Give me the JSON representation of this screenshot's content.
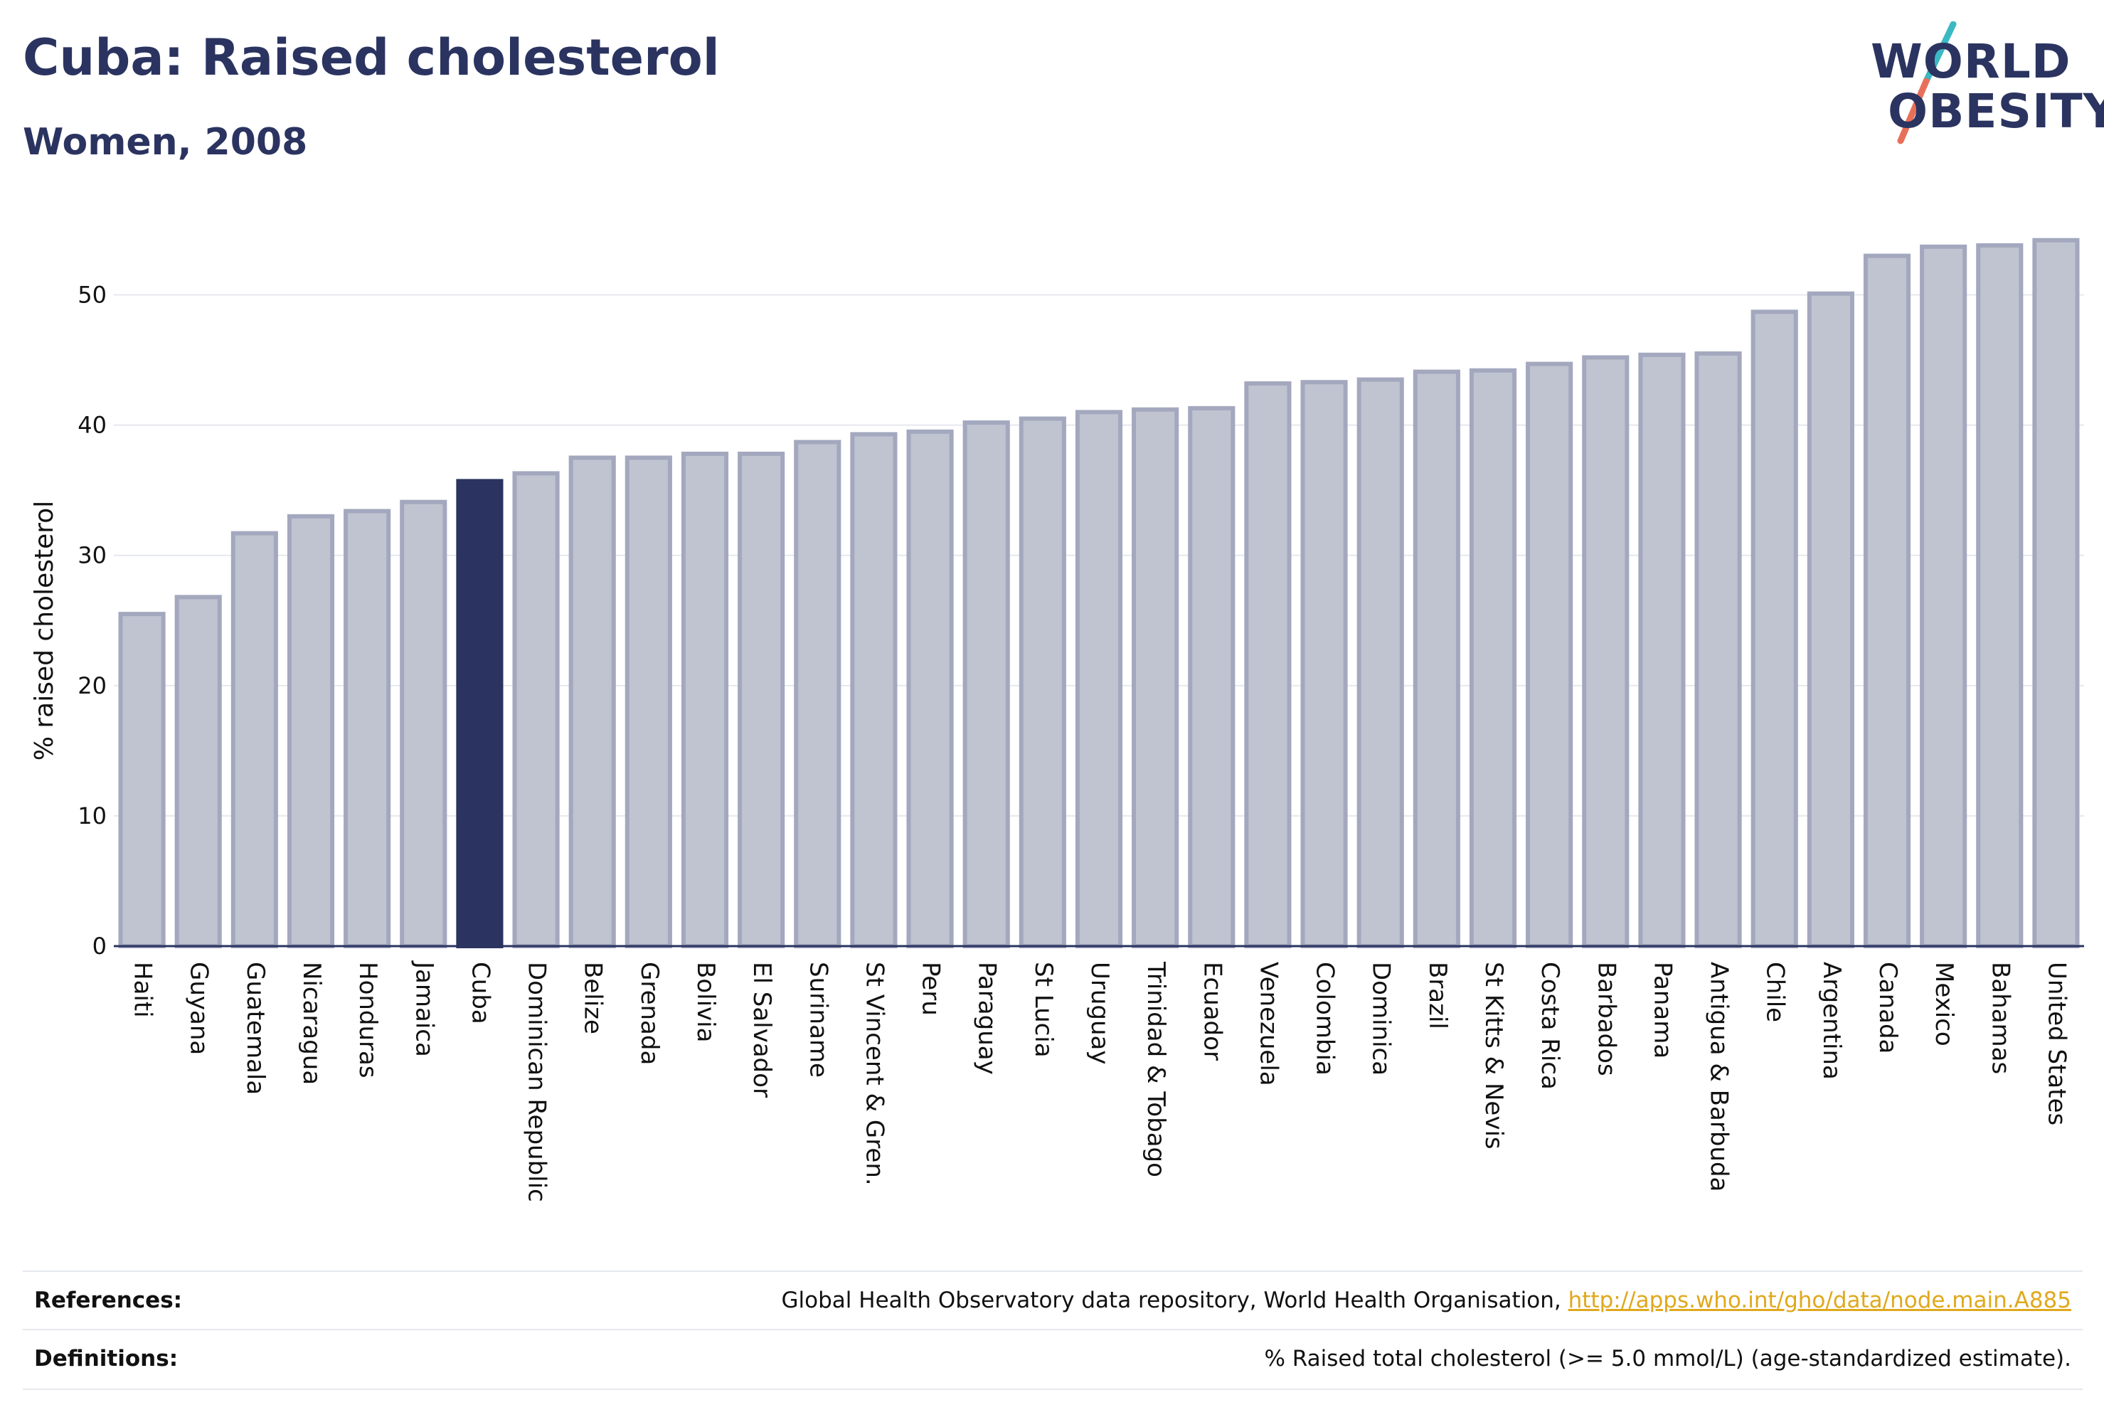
{
  "header": {
    "title": "Cuba: Raised cholesterol",
    "subtitle": "Women, 2008"
  },
  "logo": {
    "line1": "WORLD",
    "line2": "OBESITY",
    "slash_colors": [
      "#3bb9c3",
      "#e8705a"
    ]
  },
  "colors": {
    "highlight": "#2b3460",
    "bar_fill": "#c0c3d0",
    "bar_stroke": "#a3a8be"
  },
  "chart_data": {
    "type": "bar",
    "title": "Cuba: Raised cholesterol",
    "subtitle": "Women, 2008",
    "xlabel": "",
    "ylabel": "% raised cholesterol",
    "ylim": [
      0,
      55
    ],
    "yticks": [
      0,
      10,
      20,
      30,
      40,
      50
    ],
    "grid": true,
    "highlight": "Cuba",
    "categories": [
      "Haiti",
      "Guyana",
      "Guatemala",
      "Nicaragua",
      "Honduras",
      "Jamaica",
      "Cuba",
      "Dominican Republic",
      "Belize",
      "Grenada",
      "Bolivia",
      "El Salvador",
      "Suriname",
      "St Vincent & Gren.",
      "Peru",
      "Paraguay",
      "St Lucia",
      "Uruguay",
      "Trinidad & Tobago",
      "Ecuador",
      "Venezuela",
      "Colombia",
      "Dominica",
      "Brazil",
      "St Kitts & Nevis",
      "Costa Rica",
      "Barbados",
      "Panama",
      "Antigua & Barbuda",
      "Chile",
      "Argentina",
      "Canada",
      "Mexico",
      "Bahamas",
      "United States"
    ],
    "values": [
      25.5,
      26.8,
      31.7,
      33.0,
      33.4,
      34.1,
      35.7,
      36.3,
      37.5,
      37.5,
      37.8,
      37.8,
      38.7,
      39.3,
      39.5,
      40.2,
      40.5,
      41.0,
      41.2,
      41.3,
      43.2,
      43.3,
      43.5,
      44.1,
      44.2,
      44.7,
      45.2,
      45.4,
      45.5,
      48.7,
      50.1,
      53.0,
      53.7,
      53.8,
      54.2
    ]
  },
  "references": {
    "label": "References:",
    "text": "Global Health Observatory data repository, World Health Organisation, ",
    "link": "http://apps.who.int/gho/data/node.main.A885"
  },
  "definitions": {
    "label": "Definitions:",
    "text": "% Raised total cholesterol (>= 5.0 mmol/L) (age-standardized estimate)."
  }
}
